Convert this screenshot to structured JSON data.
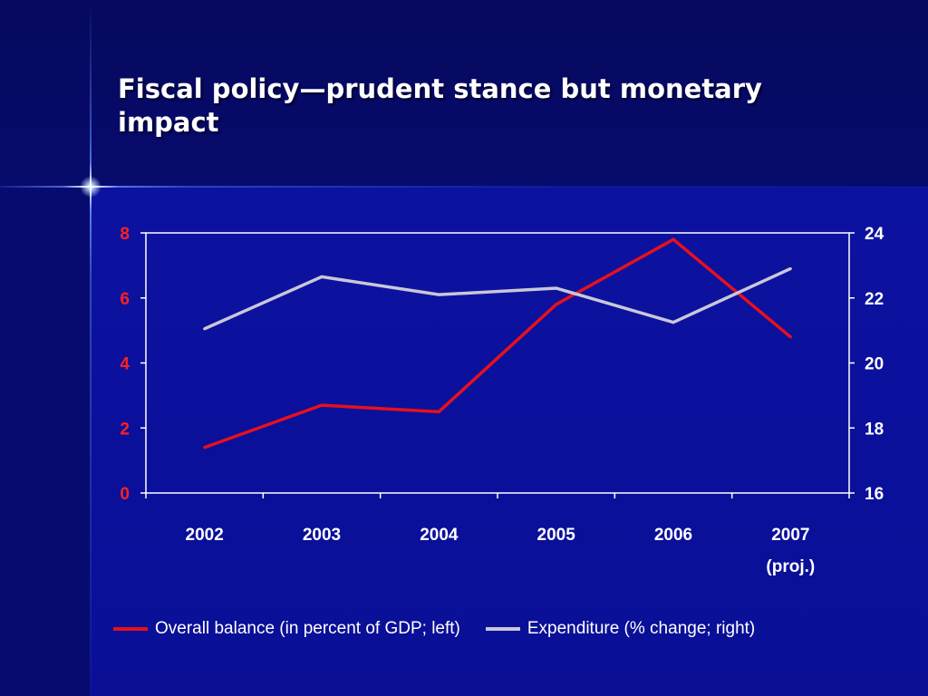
{
  "slide": {
    "title": "Fiscal policy—prudent stance but monetary impact"
  },
  "colors": {
    "background": "#0a0f8a",
    "series_red": "#e8101c",
    "series_gray": "#c8c8d8",
    "left_axis_text": "#ff2020",
    "right_axis_text": "#ffffff",
    "text": "#ffffff"
  },
  "chart_data": {
    "type": "line",
    "title": "",
    "categories": [
      "2002",
      "2003",
      "2004",
      "2005",
      "2006",
      "2007"
    ],
    "category_sublabels": [
      "",
      "",
      "",
      "",
      "",
      "(proj.)"
    ],
    "y_left": {
      "label": "",
      "ylim": [
        0,
        8
      ],
      "ticks": [
        "0",
        "2",
        "4",
        "6",
        "8"
      ]
    },
    "y_right": {
      "label": "",
      "ylim": [
        16,
        24
      ],
      "ticks": [
        "16",
        "18",
        "20",
        "22",
        "24"
      ]
    },
    "grid": false,
    "legend_position": "bottom",
    "series": [
      {
        "name": "Overall balance (in percent of GDP; left)",
        "axis": "left",
        "color": "#e8101c",
        "values": [
          1.4,
          2.7,
          2.5,
          5.8,
          7.8,
          4.8
        ]
      },
      {
        "name": "Expenditure (% change; right)",
        "axis": "right",
        "color": "#c8c8d8",
        "values": [
          21.05,
          22.65,
          22.1,
          22.3,
          21.25,
          22.9
        ]
      }
    ]
  }
}
